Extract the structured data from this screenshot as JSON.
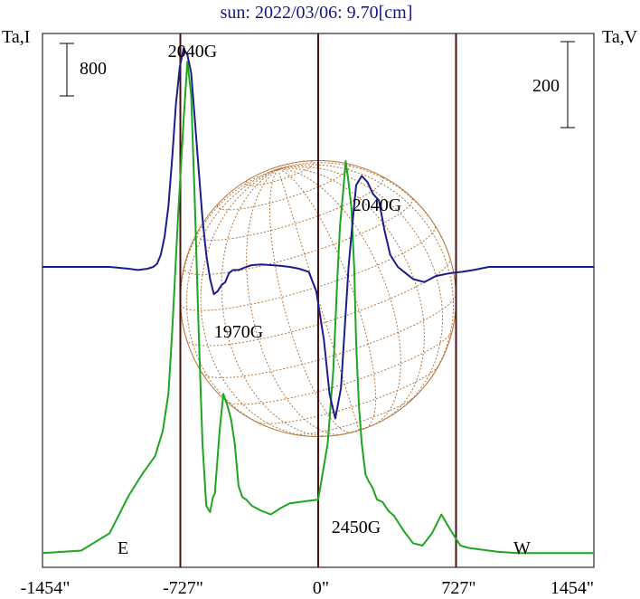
{
  "chart_data": {
    "type": "line",
    "title": "sun: 2022/03/06: 9.70[cm]",
    "left_axis_label": "Ta,I",
    "right_axis_label": "Ta,V",
    "x_ticks": [
      {
        "value": -1454,
        "label": "-1454\""
      },
      {
        "value": -727,
        "label": "-727\""
      },
      {
        "value": 0,
        "label": "0\""
      },
      {
        "value": 727,
        "label": "727\""
      },
      {
        "value": 1454,
        "label": "1454\""
      }
    ],
    "xlim": [
      -1454,
      1454
    ],
    "solar_limb_arcsec": 727,
    "limb_labels": {
      "east": "E",
      "west": "W"
    },
    "scale_bars": [
      {
        "axis": "left",
        "label": "800",
        "value": 800
      },
      {
        "axis": "right",
        "label": "200",
        "value": 200
      }
    ],
    "annotations": [
      {
        "text": "2040G",
        "x": -560
      },
      {
        "text": "1970G",
        "x": -318
      },
      {
        "text": "2040G",
        "x": 245
      },
      {
        "text": "2450G",
        "x": 154
      }
    ],
    "series": [
      {
        "key": "I",
        "color": "#1fa51f",
        "axis": "left",
        "x": [
          -1454,
          -1250,
          -1100,
          -1000,
          -930,
          -860,
          -820,
          -790,
          -770,
          -740,
          -710,
          -690,
          -670,
          -650,
          -630,
          -610,
          -590,
          -570,
          -555,
          -545,
          -535,
          -520,
          -500,
          -480,
          -460,
          -440,
          -420,
          -400,
          -380,
          -350,
          -300,
          -250,
          -200,
          -150,
          -100,
          -50,
          0,
          50,
          80,
          100,
          115,
          130,
          145,
          160,
          175,
          190,
          200,
          215,
          230,
          250,
          265,
          285,
          310,
          340,
          370,
          400,
          450,
          500,
          550,
          600,
          650,
          700,
          750,
          800,
          850,
          950,
          1050,
          1150,
          1250,
          1350,
          1454
        ],
        "values": [
          20,
          40,
          180,
          480,
          650,
          800,
          1000,
          1300,
          1800,
          2700,
          3500,
          3970,
          3700,
          2800,
          1800,
          900,
          400,
          350,
          470,
          500,
          700,
          1000,
          1300,
          1210,
          1100,
          900,
          560,
          470,
          450,
          400,
          360,
          330,
          380,
          420,
          430,
          440,
          450,
          900,
          1500,
          2200,
          2650,
          2900,
          3170,
          3000,
          2800,
          2300,
          1700,
          1200,
          900,
          650,
          600,
          550,
          450,
          430,
          360,
          320,
          200,
          100,
          80,
          180,
          330,
          200,
          80,
          60,
          50,
          30,
          20,
          20,
          20,
          20,
          20
        ]
      },
      {
        "key": "V",
        "color": "#1c1c8c",
        "axis": "right",
        "x": [
          -1454,
          -1300,
          -1100,
          -1000,
          -950,
          -900,
          -870,
          -850,
          -830,
          -810,
          -790,
          -770,
          -750,
          -730,
          -710,
          -690,
          -670,
          -650,
          -630,
          -610,
          -590,
          -570,
          -550,
          -530,
          -510,
          -490,
          -470,
          -450,
          -420,
          -380,
          -350,
          -300,
          -250,
          -200,
          -150,
          -100,
          -50,
          -10,
          30,
          60,
          90,
          120,
          140,
          160,
          180,
          200,
          230,
          260,
          290,
          320,
          350,
          380,
          420,
          460,
          500,
          560,
          620,
          700,
          760,
          820,
          900,
          1000,
          1200,
          1454
        ],
        "values": [
          0,
          0,
          0,
          -3,
          -5,
          -3,
          0,
          5,
          20,
          50,
          100,
          180,
          270,
          330,
          360,
          350,
          320,
          240,
          160,
          80,
          20,
          -20,
          -45,
          -40,
          -30,
          -25,
          -10,
          -5,
          -5,
          0,
          3,
          4,
          3,
          2,
          0,
          -3,
          -8,
          -40,
          -120,
          -210,
          -250,
          -200,
          -100,
          0,
          70,
          135,
          150,
          140,
          120,
          110,
          60,
          20,
          0,
          -10,
          -20,
          -25,
          -15,
          -10,
          -8,
          -5,
          0,
          0,
          0,
          0
        ]
      }
    ],
    "grid": false,
    "legend": "none"
  }
}
